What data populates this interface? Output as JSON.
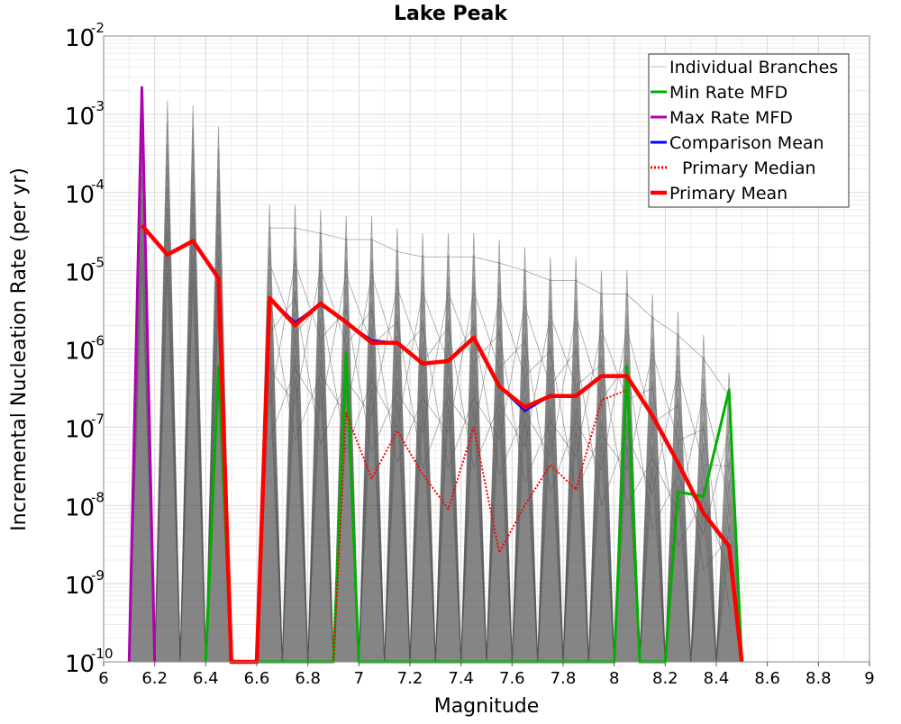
{
  "chart_data": {
    "type": "line",
    "title": "Lake Peak",
    "xlabel": "Magnitude",
    "ylabel": "Incremental Nucleation Rate (per yr)",
    "xlim": [
      6,
      9
    ],
    "ylim": [
      1e-10,
      0.01
    ],
    "yscale": "log",
    "grid": true,
    "legend_position": "top-right",
    "x_ticks": [
      "6",
      "6.2",
      "6.4",
      "6.6",
      "6.8",
      "7",
      "7.2",
      "7.4",
      "7.6",
      "7.8",
      "8",
      "8.2",
      "8.4",
      "8.6",
      "8.8",
      "9"
    ],
    "y_ticks": [
      {
        "base": "10",
        "exp": "-2"
      },
      {
        "base": "10",
        "exp": "-3"
      },
      {
        "base": "10",
        "exp": "-4"
      },
      {
        "base": "10",
        "exp": "-5"
      },
      {
        "base": "10",
        "exp": "-6"
      },
      {
        "base": "10",
        "exp": "-7"
      },
      {
        "base": "10",
        "exp": "-8"
      },
      {
        "base": "10",
        "exp": "-9"
      },
      {
        "base": "10",
        "exp": "-10"
      }
    ],
    "colors": {
      "branches": "#555555",
      "min": "#00b000",
      "max": "#b000b0",
      "comparison": "#0000ff",
      "median": "#ff0000",
      "mean": "#ff0000"
    },
    "series": [
      {
        "name": "Individual Branches",
        "key": "branches",
        "style": "band",
        "x": [
          6.15,
          6.25,
          6.35,
          6.45,
          6.65,
          6.75,
          6.85,
          6.95,
          7.05,
          7.15,
          7.25,
          7.35,
          7.45,
          7.55,
          7.65,
          7.75,
          7.85,
          7.95,
          8.05,
          8.15,
          8.25,
          8.35,
          8.45
        ],
        "y": [
          0.002,
          0.0015,
          0.0013,
          0.0007,
          7e-05,
          7e-05,
          6e-05,
          5e-05,
          5e-05,
          3.5e-05,
          3e-05,
          3e-05,
          3e-05,
          2.5e-05,
          2e-05,
          1.5e-05,
          1.5e-05,
          1e-05,
          1e-05,
          5e-06,
          3e-06,
          1.5e-06,
          5e-07
        ]
      },
      {
        "name": "Min Rate MFD",
        "key": "min",
        "style": "solid",
        "x": [
          6.4,
          6.45,
          6.5,
          6.9,
          6.95,
          7.0,
          8.0,
          8.05,
          8.1,
          8.2,
          8.25,
          8.35,
          8.45,
          8.5
        ],
        "y": [
          1e-10,
          6e-07,
          1e-10,
          1e-10,
          9e-07,
          1e-10,
          1e-10,
          6e-07,
          1e-10,
          1e-10,
          1.5e-08,
          1.3e-08,
          3e-07,
          1e-10
        ]
      },
      {
        "name": "Max Rate MFD",
        "key": "max",
        "style": "solid",
        "x": [
          6.1,
          6.15,
          6.2
        ],
        "y": [
          1e-10,
          0.0022,
          1e-10
        ]
      },
      {
        "name": "Comparison Mean",
        "key": "comparison",
        "style": "solid",
        "x": [
          6.15,
          6.25,
          6.35,
          6.45,
          6.5,
          6.6,
          6.65,
          6.75,
          6.85,
          6.95,
          7.05,
          7.15,
          7.25,
          7.35,
          7.45,
          7.55,
          7.65,
          7.75,
          7.85,
          7.95,
          8.05,
          8.15,
          8.25,
          8.35,
          8.45,
          8.5
        ],
        "y": [
          3.8e-05,
          1.6e-05,
          2.4e-05,
          8e-06,
          1e-10,
          1e-10,
          4.5e-06,
          2.2e-06,
          3.8e-06,
          2.2e-06,
          1.3e-06,
          1.2e-06,
          6.5e-07,
          7e-07,
          1.4e-06,
          3.3e-07,
          1.6e-07,
          2.5e-07,
          2.5e-07,
          4.5e-07,
          4.5e-07,
          1.4e-07,
          3.5e-08,
          8e-09,
          3e-09,
          1e-10
        ]
      },
      {
        "name": "Primary Median",
        "key": "median",
        "style": "dotted",
        "x": [
          6.9,
          6.95,
          7.05,
          7.15,
          7.25,
          7.35,
          7.45,
          7.55,
          7.65,
          7.75,
          7.85,
          7.95,
          8.05
        ],
        "y": [
          1e-10,
          1.5e-07,
          2.2e-08,
          9e-08,
          2.5e-08,
          9e-09,
          1e-07,
          2.5e-09,
          1e-08,
          3.3e-08,
          1.6e-08,
          2.2e-07,
          3e-07
        ]
      },
      {
        "name": "Primary Mean",
        "key": "mean",
        "style": "thick",
        "x": [
          6.15,
          6.25,
          6.35,
          6.45,
          6.5,
          6.6,
          6.65,
          6.75,
          6.85,
          6.95,
          7.05,
          7.15,
          7.25,
          7.35,
          7.45,
          7.55,
          7.65,
          7.75,
          7.85,
          7.95,
          8.05,
          8.15,
          8.25,
          8.35,
          8.45,
          8.5
        ],
        "y": [
          3.8e-05,
          1.6e-05,
          2.4e-05,
          8e-06,
          1e-10,
          1e-10,
          4.5e-06,
          2e-06,
          3.8e-06,
          2.2e-06,
          1.2e-06,
          1.2e-06,
          6.5e-07,
          7e-07,
          1.4e-06,
          3.3e-07,
          1.8e-07,
          2.5e-07,
          2.5e-07,
          4.5e-07,
          4.5e-07,
          1.4e-07,
          3.5e-08,
          8e-09,
          3e-09,
          1e-10
        ]
      }
    ]
  }
}
